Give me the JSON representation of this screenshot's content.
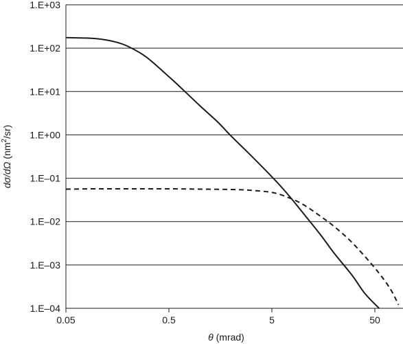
{
  "chart_data": {
    "type": "line",
    "xlabel": {
      "symbol": "θ",
      "unit": " (mrad)"
    },
    "ylabel": {
      "symbol": "dσ/dΩ",
      "unit_pre": " (nm",
      "unit_sup": "2",
      "unit_post": "/sr)"
    },
    "x_scale": "log",
    "y_scale": "log",
    "xlim": [
      0.05,
      100
    ],
    "ylim": [
      0.0001,
      1000
    ],
    "x_ticks": [
      0.05,
      0.5,
      5,
      50
    ],
    "x_tick_labels": [
      "0.05",
      "0.5",
      "5",
      "50"
    ],
    "y_ticks": [
      0.0001,
      0.001,
      0.01,
      0.1,
      1,
      10,
      100,
      1000
    ],
    "y_tick_labels": [
      "1.E–04",
      "1.E–03",
      "1.E–02",
      "1.E–01",
      "1.E+00",
      "1.E+01",
      "1.E+02",
      "1.E+03"
    ],
    "grid": "horizontal",
    "legend": "none",
    "series": [
      {
        "style": "solid",
        "color": "#1a1a1a",
        "x": [
          0.05,
          0.07,
          0.1,
          0.15,
          0.2,
          0.3,
          0.5,
          0.7,
          1,
          1.5,
          2,
          3,
          5,
          7,
          10,
          15,
          20,
          30,
          40,
          55
        ],
        "y": [
          175,
          172,
          165,
          140,
          110,
          63,
          22,
          10.5,
          4.7,
          1.95,
          0.95,
          0.37,
          0.108,
          0.045,
          0.016,
          0.0048,
          0.0019,
          0.00058,
          0.00022,
          0.0001
        ]
      },
      {
        "style": "dashed",
        "color": "#1a1a1a",
        "x": [
          0.05,
          0.1,
          0.2,
          0.5,
          1,
          2,
          3,
          5,
          7,
          10,
          15,
          20,
          30,
          50,
          70,
          85
        ],
        "y": [
          0.056,
          0.057,
          0.057,
          0.057,
          0.056,
          0.055,
          0.053,
          0.047,
          0.037,
          0.025,
          0.013,
          0.0078,
          0.0033,
          0.00085,
          0.00029,
          0.00012
        ]
      }
    ]
  }
}
